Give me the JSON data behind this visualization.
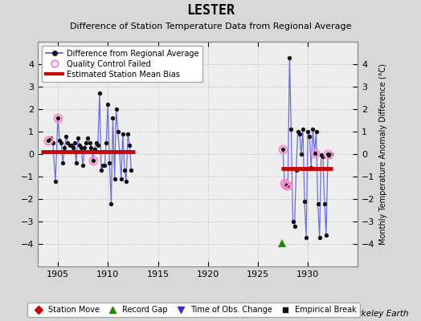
{
  "title": "LESTER",
  "subtitle": "Difference of Station Temperature Data from Regional Average",
  "ylabel": "Monthly Temperature Anomaly Difference (°C)",
  "xlim": [
    1903,
    1935
  ],
  "ylim": [
    -5,
    5
  ],
  "xticks": [
    1905,
    1910,
    1915,
    1920,
    1925,
    1930
  ],
  "yticks": [
    -4,
    -3,
    -2,
    -1,
    0,
    1,
    2,
    3,
    4
  ],
  "background_color": "#d8d8d8",
  "plot_background": "#eeeeee",
  "segment1": {
    "x_start": 1903.3,
    "x_end": 1912.7,
    "bias": 0.12
  },
  "segment2": {
    "x_start": 1927.3,
    "x_end": 1932.5,
    "bias": -0.65
  },
  "data_segment1": {
    "years": [
      1904.0,
      1904.25,
      1904.5,
      1904.75,
      1905.0,
      1905.17,
      1905.33,
      1905.5,
      1905.67,
      1905.83,
      1906.0,
      1906.17,
      1906.33,
      1906.5,
      1906.67,
      1906.83,
      1907.0,
      1907.17,
      1907.33,
      1907.5,
      1907.67,
      1907.83,
      1908.0,
      1908.17,
      1908.33,
      1908.5,
      1908.67,
      1908.83,
      1909.0,
      1909.17,
      1909.33,
      1909.5,
      1909.67,
      1909.83,
      1910.0,
      1910.17,
      1910.33,
      1910.5,
      1910.67,
      1910.83,
      1911.0,
      1911.17,
      1911.33,
      1911.5,
      1911.67,
      1911.83,
      1912.0,
      1912.17,
      1912.33
    ],
    "values": [
      0.6,
      0.7,
      0.5,
      -1.2,
      1.6,
      0.6,
      0.5,
      -0.4,
      0.3,
      0.8,
      0.5,
      0.4,
      0.4,
      0.3,
      0.5,
      -0.4,
      0.7,
      0.4,
      0.3,
      -0.5,
      0.3,
      0.5,
      0.7,
      0.5,
      0.3,
      -0.3,
      0.2,
      0.5,
      0.4,
      2.7,
      -0.7,
      -0.5,
      -0.5,
      0.5,
      2.2,
      -0.4,
      -2.2,
      1.6,
      -1.1,
      2.0,
      1.0,
      0.1,
      -1.1,
      0.9,
      -0.7,
      -1.2,
      0.9,
      0.4,
      -0.7
    ],
    "qc_failed_idx": [
      0,
      4,
      25
    ]
  },
  "data_segment2": {
    "years": [
      1927.5,
      1927.67,
      1927.83,
      1928.0,
      1928.17,
      1928.33,
      1928.5,
      1928.67,
      1928.83,
      1929.0,
      1929.17,
      1929.33,
      1929.5,
      1929.67,
      1929.83,
      1930.0,
      1930.17,
      1930.33,
      1930.5,
      1930.67,
      1930.83,
      1931.0,
      1931.17,
      1931.33,
      1931.5,
      1931.67,
      1931.83,
      1932.0,
      1932.17,
      1932.33
    ],
    "values": [
      0.2,
      -1.3,
      -1.4,
      -1.4,
      4.3,
      1.1,
      -3.0,
      -3.2,
      -0.7,
      1.0,
      0.9,
      0.0,
      1.1,
      -2.1,
      -3.7,
      1.0,
      0.8,
      -0.6,
      1.1,
      0.05,
      1.0,
      -2.2,
      -3.7,
      -0.05,
      -0.1,
      -2.2,
      -3.6,
      0.0,
      -0.1,
      -0.0
    ],
    "qc_failed_idx": [
      0,
      1,
      2,
      3,
      19,
      27
    ]
  },
  "record_gap_x": 1927.4,
  "record_gap_y": -3.95,
  "colors": {
    "line": "#5555dd",
    "dot": "#111111",
    "bias": "#cc0000",
    "qc": "#ff88cc",
    "record_gap": "#228800",
    "station_move": "#cc0000",
    "obs_change": "#3333cc",
    "empirical": "#111111"
  }
}
